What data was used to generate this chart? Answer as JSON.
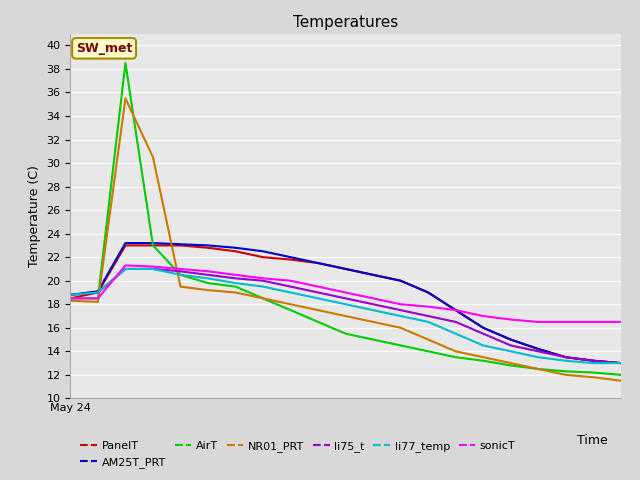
{
  "title": "Temperatures",
  "xlabel": "Time",
  "ylabel": "Temperature (C)",
  "fig_bg_color": "#d8d8d8",
  "plot_bg_color": "#e8e8e8",
  "ylim": [
    10,
    41
  ],
  "yticks": [
    10,
    12,
    14,
    16,
    18,
    20,
    22,
    24,
    26,
    28,
    30,
    32,
    34,
    36,
    38,
    40
  ],
  "x_label_text": "May 24",
  "annotation": "SW_met",
  "annotation_bg": "#ffffcc",
  "annotation_fg": "#800000",
  "series": [
    {
      "name": "PanelT",
      "color": "#cc0000",
      "x": [
        0,
        1,
        2,
        3,
        4,
        5,
        6,
        7,
        8,
        9,
        10,
        11,
        12,
        13,
        14,
        15,
        16,
        17,
        18,
        19,
        20
      ],
      "y": [
        18.5,
        19.0,
        23.0,
        23.0,
        23.0,
        22.8,
        22.5,
        22.0,
        21.8,
        21.5,
        21.0,
        20.5,
        20.0,
        19.0,
        17.5,
        16.0,
        15.0,
        14.2,
        13.5,
        13.2,
        13.0
      ]
    },
    {
      "name": "AM25T_PRT",
      "color": "#0000cc",
      "x": [
        0,
        1,
        2,
        3,
        4,
        5,
        6,
        7,
        8,
        9,
        10,
        11,
        12,
        13,
        14,
        15,
        16,
        17,
        18,
        19,
        20
      ],
      "y": [
        18.8,
        19.1,
        23.2,
        23.2,
        23.1,
        23.0,
        22.8,
        22.5,
        22.0,
        21.5,
        21.0,
        20.5,
        20.0,
        19.0,
        17.5,
        16.0,
        15.0,
        14.2,
        13.5,
        13.2,
        13.0
      ]
    },
    {
      "name": "AirT",
      "color": "#00cc00",
      "x": [
        0,
        1,
        2,
        3,
        4,
        5,
        6,
        7,
        8,
        9,
        10,
        11,
        12,
        13,
        14,
        15,
        16,
        17,
        18,
        19,
        20
      ],
      "y": [
        18.5,
        18.5,
        38.5,
        23.0,
        20.5,
        19.8,
        19.5,
        18.5,
        17.5,
        16.5,
        15.5,
        15.0,
        14.5,
        14.0,
        13.5,
        13.2,
        12.8,
        12.5,
        12.3,
        12.2,
        12.0
      ]
    },
    {
      "name": "NR01_PRT",
      "color": "#cc7700",
      "x": [
        0,
        1,
        2,
        3,
        4,
        5,
        6,
        7,
        8,
        9,
        10,
        11,
        12,
        13,
        14,
        15,
        16,
        17,
        18,
        19,
        20
      ],
      "y": [
        18.3,
        18.2,
        35.5,
        30.5,
        19.5,
        19.2,
        19.0,
        18.5,
        18.0,
        17.5,
        17.0,
        16.5,
        16.0,
        15.0,
        14.0,
        13.5,
        13.0,
        12.5,
        12.0,
        11.8,
        11.5
      ]
    },
    {
      "name": "li75_t",
      "color": "#9900cc",
      "x": [
        0,
        1,
        2,
        3,
        4,
        5,
        6,
        7,
        8,
        9,
        10,
        11,
        12,
        13,
        14,
        15,
        16,
        17,
        18,
        19,
        20
      ],
      "y": [
        18.8,
        19.0,
        21.0,
        21.0,
        20.8,
        20.5,
        20.2,
        20.0,
        19.5,
        19.0,
        18.5,
        18.0,
        17.5,
        17.0,
        16.5,
        15.5,
        14.5,
        14.0,
        13.5,
        13.2,
        13.0
      ]
    },
    {
      "name": "li77_temp",
      "color": "#00bbcc",
      "x": [
        0,
        1,
        2,
        3,
        4,
        5,
        6,
        7,
        8,
        9,
        10,
        11,
        12,
        13,
        14,
        15,
        16,
        17,
        18,
        19,
        20
      ],
      "y": [
        18.8,
        19.0,
        21.0,
        21.0,
        20.5,
        20.2,
        19.8,
        19.5,
        19.0,
        18.5,
        18.0,
        17.5,
        17.0,
        16.5,
        15.5,
        14.5,
        14.0,
        13.5,
        13.2,
        13.0,
        13.0
      ]
    },
    {
      "name": "sonicT",
      "color": "#ff00ff",
      "x": [
        0,
        1,
        2,
        3,
        4,
        5,
        6,
        7,
        8,
        9,
        10,
        11,
        12,
        13,
        14,
        15,
        16,
        17,
        18,
        19,
        20
      ],
      "y": [
        18.5,
        18.5,
        21.3,
        21.2,
        21.0,
        20.8,
        20.5,
        20.2,
        20.0,
        19.5,
        19.0,
        18.5,
        18.0,
        17.8,
        17.5,
        17.0,
        16.7,
        16.5,
        16.5,
        16.5,
        16.5
      ]
    }
  ],
  "legend_order": [
    "PanelT",
    "AM25T_PRT",
    "AirT",
    "NR01_PRT",
    "li75_t",
    "li77_temp",
    "sonicT"
  ]
}
